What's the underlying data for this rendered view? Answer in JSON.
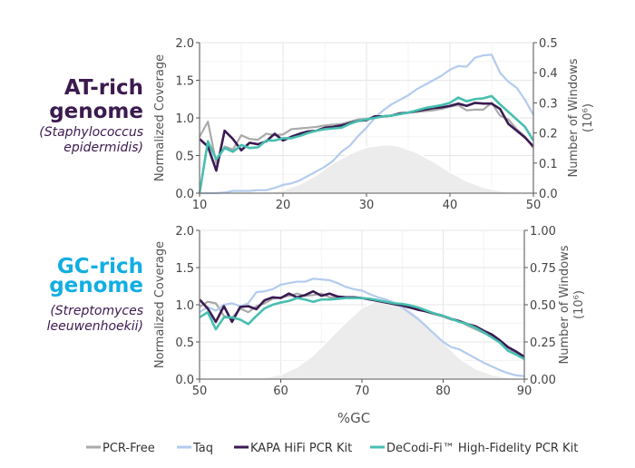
{
  "colors": {
    "PCR-Free": "#aaaaaa",
    "Taq": "#b3cbee",
    "KAPA HiFi PCR Kit": "#3a1a52",
    "DeCodi-Fi™ High-Fidelity PCR Kit": "#47bfb0",
    "windows": "#ececec",
    "at_title": "#3b1a4f",
    "gc_title": "#12aee2"
  },
  "xlabel": "%GC",
  "legend": [
    "PCR-Free",
    "Taq",
    "KAPA HiFi PCR Kit",
    "DeCodi-Fi™ High-Fidelity PCR Kit"
  ],
  "panels": [
    {
      "title_line1": "AT-rich",
      "title_line2": "genome",
      "species_line1": "(Staphylococcus",
      "species_line2": "epidermidis)"
    },
    {
      "title_line1": "GC-rich",
      "title_line2": "genome",
      "species_line1": "(Streptomyces",
      "species_line2": "leeuwenhoekii)"
    }
  ],
  "chart_data": [
    {
      "type": "line",
      "xlabel": "%GC",
      "ylabel": "Normalized Coverage",
      "y2label": "Number of Windows",
      "y2label_unit": "(10⁶)",
      "xlim": [
        10,
        50
      ],
      "ylim": [
        0,
        2
      ],
      "y2lim": [
        0,
        0.5
      ],
      "xticks": [
        "10",
        "20",
        "30",
        "40",
        "50"
      ],
      "yticks": [
        "0.0",
        "0.5",
        "1.0",
        "1.5",
        "2.0"
      ],
      "y2ticks": [
        "0.0",
        "0.1",
        "0.2",
        "0.3",
        "0.4",
        "0.5"
      ],
      "grid": true,
      "x": [
        10,
        11,
        12,
        13,
        14,
        15,
        16,
        17,
        18,
        19,
        20,
        21,
        22,
        23,
        24,
        25,
        26,
        27,
        28,
        29,
        30,
        31,
        32,
        33,
        34,
        35,
        36,
        37,
        38,
        39,
        40,
        41,
        42,
        43,
        44,
        45,
        46,
        47,
        48,
        49,
        50
      ],
      "series": [
        {
          "name": "PCR-Free",
          "values": [
            0.75,
            0.95,
            0.4,
            0.62,
            0.58,
            0.77,
            0.72,
            0.71,
            0.79,
            0.77,
            0.78,
            0.85,
            0.86,
            0.87,
            0.88,
            0.9,
            0.91,
            0.92,
            0.95,
            0.98,
            0.99,
            1.0,
            1.02,
            1.03,
            1.05,
            1.07,
            1.08,
            1.09,
            1.1,
            1.12,
            1.15,
            1.17,
            1.1,
            1.11,
            1.11,
            1.2,
            1.03,
            0.98,
            0.85,
            0.75,
            0.6
          ]
        },
        {
          "name": "Taq",
          "values": [
            0,
            0,
            0,
            0.01,
            0.03,
            0.03,
            0.03,
            0.04,
            0.04,
            0.07,
            0.11,
            0.13,
            0.17,
            0.23,
            0.29,
            0.35,
            0.43,
            0.55,
            0.63,
            0.76,
            0.87,
            1.0,
            1.1,
            1.18,
            1.24,
            1.3,
            1.38,
            1.44,
            1.5,
            1.56,
            1.64,
            1.69,
            1.68,
            1.8,
            1.83,
            1.84,
            1.6,
            1.48,
            1.4,
            1.24,
            1.04
          ]
        },
        {
          "name": "KAPA HiFi PCR Kit",
          "values": [
            0.72,
            0.62,
            0.3,
            0.83,
            0.72,
            0.57,
            0.67,
            0.65,
            0.69,
            0.79,
            0.7,
            0.75,
            0.79,
            0.82,
            0.83,
            0.87,
            0.88,
            0.9,
            0.93,
            0.96,
            0.97,
            1.02,
            1.02,
            1.03,
            1.06,
            1.07,
            1.09,
            1.11,
            1.13,
            1.14,
            1.16,
            1.19,
            1.16,
            1.2,
            1.19,
            1.19,
            1.12,
            0.92,
            0.83,
            0.74,
            0.62
          ]
        },
        {
          "name": "DeCodi-Fi™ High-Fidelity PCR Kit",
          "values": [
            0,
            0.69,
            0.45,
            0.6,
            0.55,
            0.64,
            0.6,
            0.61,
            0.7,
            0.7,
            0.73,
            0.73,
            0.76,
            0.8,
            0.83,
            0.85,
            0.86,
            0.87,
            0.92,
            0.96,
            0.98,
            1.0,
            1.02,
            1.03,
            1.05,
            1.07,
            1.1,
            1.13,
            1.15,
            1.17,
            1.2,
            1.27,
            1.22,
            1.25,
            1.26,
            1.29,
            1.18,
            1.08,
            0.98,
            0.88,
            0.7
          ]
        }
      ],
      "windows": {
        "x": [
          10,
          16,
          18,
          20,
          22,
          24,
          26,
          28,
          30,
          32,
          33,
          34,
          36,
          38,
          40,
          42,
          44,
          46,
          48,
          50
        ],
        "values": [
          0,
          0,
          0.001,
          0.01,
          0.03,
          0.06,
          0.1,
          0.13,
          0.153,
          0.16,
          0.16,
          0.155,
          0.135,
          0.105,
          0.07,
          0.04,
          0.02,
          0.008,
          0.002,
          0
        ]
      }
    },
    {
      "type": "line",
      "xlabel": "%GC",
      "ylabel": "Normalized Coverage",
      "y2label": "Number of Windows",
      "y2label_unit": "(10⁶)",
      "xlim": [
        50,
        90
      ],
      "ylim": [
        0,
        2
      ],
      "y2lim": [
        0,
        1
      ],
      "xticks": [
        "50",
        "60",
        "70",
        "80",
        "90"
      ],
      "yticks": [
        "0.0",
        "0.5",
        "1.0",
        "1.5",
        "2.0"
      ],
      "y2ticks": [
        "0.00",
        "0.25",
        "0.50",
        "0.75",
        "1.00"
      ],
      "grid": true,
      "x": [
        50,
        51,
        52,
        53,
        54,
        55,
        56,
        57,
        58,
        59,
        60,
        61,
        62,
        63,
        64,
        65,
        66,
        67,
        68,
        69,
        70,
        71,
        72,
        73,
        74,
        75,
        76,
        77,
        78,
        79,
        80,
        81,
        82,
        83,
        84,
        85,
        86,
        87,
        88,
        89,
        90
      ],
      "series": [
        {
          "name": "PCR-Free",
          "values": [
            0.97,
            1.04,
            1.02,
            0.85,
            0.82,
            0.95,
            0.9,
            0.98,
            1.02,
            1.08,
            1.1,
            1.12,
            1.15,
            1.12,
            1.13,
            1.15,
            1.1,
            1.1,
            1.1,
            1.1,
            1.09,
            1.07,
            1.05,
            1.03,
            1.0,
            0.98,
            0.96,
            0.94,
            0.9,
            0.87,
            0.84,
            0.8,
            0.78,
            0.72,
            0.67,
            0.62,
            0.57,
            0.5,
            0.42,
            0.35,
            0.28
          ]
        },
        {
          "name": "Taq",
          "values": [
            0.9,
            0.97,
            0.92,
            1.0,
            1.02,
            0.98,
            1.02,
            1.17,
            1.18,
            1.21,
            1.27,
            1.29,
            1.31,
            1.31,
            1.35,
            1.34,
            1.33,
            1.29,
            1.24,
            1.21,
            1.19,
            1.14,
            1.1,
            1.07,
            1.02,
            0.96,
            0.88,
            0.8,
            0.7,
            0.6,
            0.5,
            0.43,
            0.4,
            0.34,
            0.28,
            0.22,
            0.17,
            0.12,
            0.08,
            0.05,
            0.04
          ]
        },
        {
          "name": "KAPA HiFi PCR Kit",
          "values": [
            1.07,
            0.95,
            0.77,
            0.98,
            0.77,
            0.97,
            0.98,
            0.94,
            1.06,
            1.1,
            1.09,
            1.15,
            1.1,
            1.13,
            1.18,
            1.12,
            1.15,
            1.11,
            1.1,
            1.1,
            1.09,
            1.07,
            1.05,
            1.03,
            1.01,
            0.99,
            0.96,
            0.93,
            0.91,
            0.88,
            0.85,
            0.81,
            0.78,
            0.74,
            0.71,
            0.65,
            0.6,
            0.52,
            0.43,
            0.37,
            0.3
          ]
        },
        {
          "name": "DeCodi-Fi™ High-Fidelity PCR Kit",
          "values": [
            0.83,
            0.9,
            0.67,
            0.83,
            0.83,
            0.8,
            0.74,
            0.85,
            0.95,
            1.0,
            1.03,
            1.05,
            1.09,
            1.07,
            1.04,
            1.07,
            1.07,
            1.08,
            1.09,
            1.09,
            1.09,
            1.08,
            1.06,
            1.04,
            1.02,
            1.01,
            0.99,
            0.96,
            0.92,
            0.88,
            0.85,
            0.81,
            0.77,
            0.74,
            0.69,
            0.63,
            0.56,
            0.49,
            0.38,
            0.33,
            0.27
          ]
        }
      ],
      "windows": {
        "x": [
          50,
          55,
          58,
          60,
          62,
          64,
          66,
          68,
          70,
          72,
          73,
          74,
          76,
          78,
          80,
          82,
          84,
          86,
          88,
          90
        ],
        "values": [
          0,
          0.002,
          0.01,
          0.03,
          0.08,
          0.16,
          0.27,
          0.38,
          0.48,
          0.53,
          0.54,
          0.53,
          0.47,
          0.37,
          0.25,
          0.14,
          0.07,
          0.03,
          0.01,
          0
        ]
      }
    }
  ]
}
